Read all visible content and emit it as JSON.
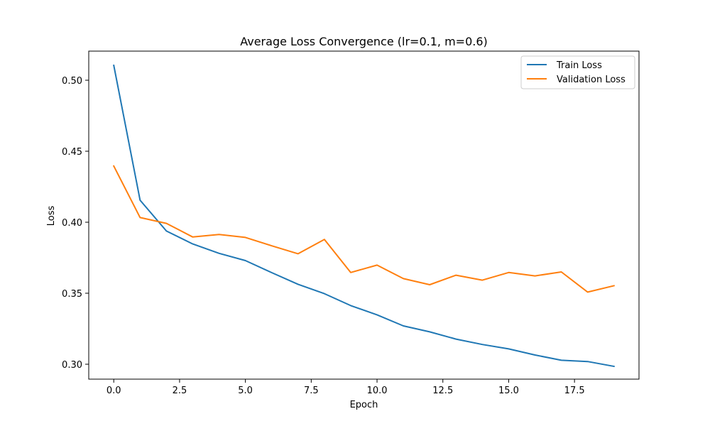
{
  "chart_data": {
    "type": "line",
    "title": "Average Loss Convergence (lr=0.1, m=0.6)",
    "xlabel": "Epoch",
    "ylabel": "Loss",
    "xlim": [
      -0.95,
      19.95
    ],
    "ylim": [
      0.2895,
      0.5205
    ],
    "xticks": [
      0.0,
      2.5,
      5.0,
      7.5,
      10.0,
      12.5,
      15.0,
      17.5
    ],
    "xtick_labels": [
      "0.0",
      "2.5",
      "5.0",
      "7.5",
      "10.0",
      "12.5",
      "15.0",
      "17.5"
    ],
    "yticks": [
      0.3,
      0.35,
      0.4,
      0.45,
      0.5
    ],
    "ytick_labels": [
      "0.30",
      "0.35",
      "0.40",
      "0.45",
      "0.50"
    ],
    "grid": false,
    "legend_position": "top-right",
    "x": [
      0,
      1,
      2,
      3,
      4,
      5,
      6,
      7,
      8,
      9,
      10,
      11,
      12,
      13,
      14,
      15,
      16,
      17,
      18,
      19
    ],
    "series": [
      {
        "name": "Train Loss",
        "color": "#1f77b4",
        "values": [
          0.5105,
          0.4155,
          0.3938,
          0.3847,
          0.3781,
          0.373,
          0.3645,
          0.3563,
          0.3497,
          0.3413,
          0.3348,
          0.327,
          0.3228,
          0.3177,
          0.3139,
          0.3108,
          0.3065,
          0.3028,
          0.3019,
          0.2985
        ]
      },
      {
        "name": "Validation Loss",
        "color": "#ff7f0e",
        "values": [
          0.4396,
          0.4033,
          0.3992,
          0.3896,
          0.3914,
          0.3893,
          0.3834,
          0.3778,
          0.3879,
          0.3646,
          0.3698,
          0.3603,
          0.356,
          0.3627,
          0.3592,
          0.3646,
          0.3622,
          0.365,
          0.3508,
          0.3553
        ]
      }
    ]
  }
}
